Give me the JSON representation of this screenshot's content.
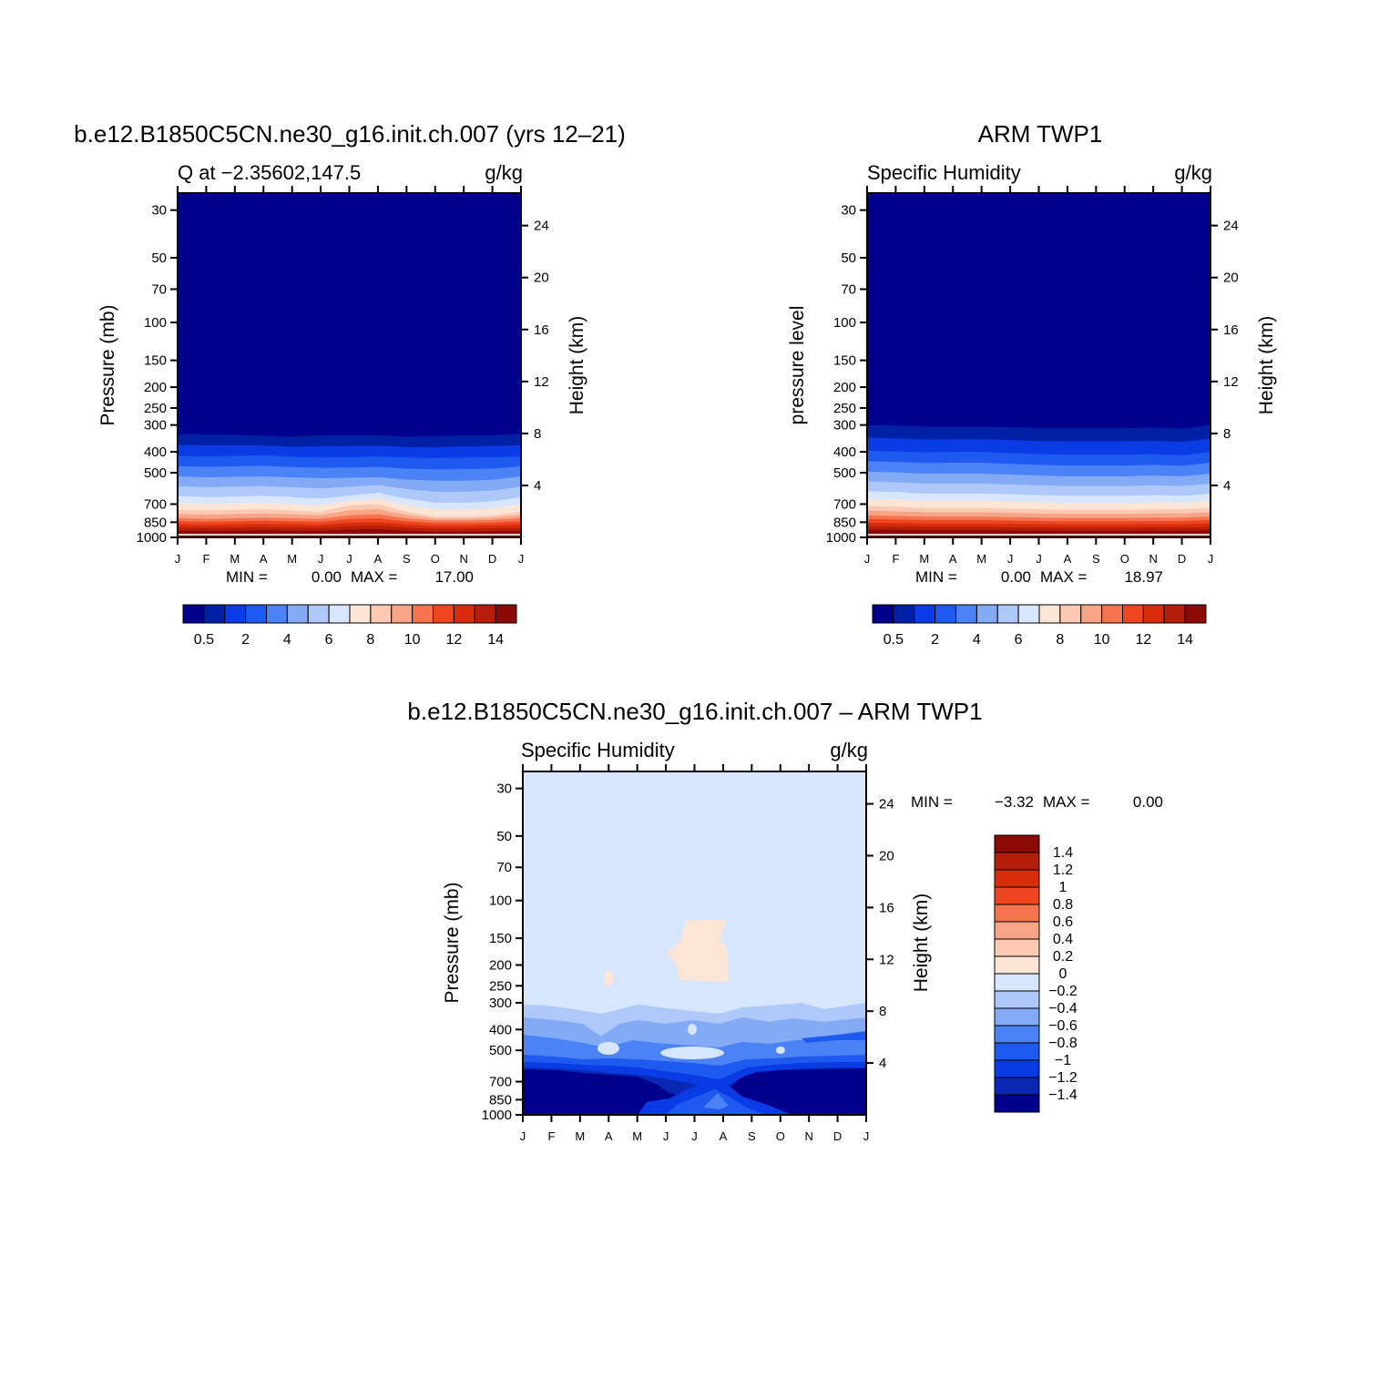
{
  "levels_colors": [
    "#00008c",
    "#0021a6",
    "#0a3ce6",
    "#1e5af0",
    "#4b82f5",
    "#82aaf5",
    "#afc8fa",
    "#d7e6fc",
    "#fde5d5",
    "#fbc8b1",
    "#f8a487",
    "#f67350",
    "#ee4620",
    "#d72d0a",
    "#b41e0a",
    "#8c0a05"
  ],
  "diff_levels_colors": [
    "#00008c",
    "#0a28b4",
    "#0a3ce6",
    "#1e5af0",
    "#4b82f5",
    "#82aaf5",
    "#afc8fa",
    "#d7e6fc",
    "#fde5d5",
    "#fbc8b1",
    "#f8a487",
    "#f67350",
    "#ee4620",
    "#d72d0a",
    "#b41e0a",
    "#8c0a05"
  ],
  "months": [
    "J",
    "F",
    "M",
    "A",
    "M",
    "J",
    "J",
    "A",
    "S",
    "O",
    "N",
    "D",
    "J"
  ],
  "pressure_ticks": [
    "30",
    "50",
    "70",
    "100",
    "150",
    "200",
    "250",
    "300",
    "400",
    "500",
    "700",
    "850",
    "1000"
  ],
  "height_ticks": [
    "24",
    "20",
    "16",
    "12",
    "8",
    "4"
  ],
  "panels": {
    "model": {
      "title": "b.e12.B1850C5CN.ne30_g16.init.ch.007 (yrs 12–21)",
      "left_label": "Q at −2.35602,147.5",
      "right_label": "g/kg",
      "ylabel": "Pressure (mb)",
      "ylabel_right": "Height (km)",
      "min_label": "MIN =",
      "min_value": "0.00",
      "max_label": "MAX =",
      "max_value": "17.00",
      "colorbar_labels": [
        "0.5",
        "2",
        "4",
        "6",
        "8",
        "10",
        "12",
        "14"
      ]
    },
    "obs": {
      "title": "ARM TWP1",
      "left_label": "Specific Humidity",
      "right_label": "g/kg",
      "ylabel": "pressure level",
      "ylabel_right": "Height (km)",
      "min_label": "MIN =",
      "min_value": "0.00",
      "max_label": "MAX =",
      "max_value": "18.97",
      "colorbar_labels": [
        "0.5",
        "2",
        "4",
        "6",
        "8",
        "10",
        "12",
        "14"
      ]
    },
    "diff": {
      "title": "b.e12.B1850C5CN.ne30_g16.init.ch.007 – ARM TWP1",
      "left_label": "Specific Humidity",
      "right_label": "g/kg",
      "ylabel": "Pressure (mb)",
      "ylabel_right": "Height (km)",
      "min_label": "MIN =",
      "min_value": "−3.32",
      "max_label": "MAX =",
      "max_value": "0.00",
      "colorbar_labels": [
        "1.4",
        "1.2",
        "1",
        "0.8",
        "0.6",
        "0.4",
        "0.2",
        "0",
        "−0.2",
        "−0.4",
        "−0.6",
        "−0.8",
        "−1",
        "−1.2",
        "−1.4"
      ]
    }
  },
  "chart_data": [
    {
      "type": "heatmap",
      "title": "b.e12.B1850C5CN.ne30_g16.init.ch.007 (yrs 12–21)",
      "variable": "Q at −2.35602,147.5",
      "units": "g/kg",
      "x": [
        "J",
        "F",
        "M",
        "A",
        "M",
        "J",
        "J",
        "A",
        "S",
        "O",
        "N",
        "D",
        "J"
      ],
      "ylabel": "Pressure (mb)",
      "ylim": [
        1000,
        25
      ],
      "y_scale": "log",
      "levels": [
        0.5,
        1,
        2,
        3,
        4,
        5,
        6,
        7,
        8,
        9,
        10,
        11,
        12,
        13,
        14
      ],
      "min": 0.0,
      "max": 17.0,
      "isobar_profiles": {
        "0.5": [
          330,
          332,
          333,
          337,
          340,
          334,
          334,
          334,
          340,
          338,
          335,
          335,
          330
        ],
        "2": [
          418,
          420,
          418,
          415,
          422,
          425,
          424,
          420,
          425,
          428,
          425,
          424,
          420
        ],
        "4": [
          520,
          525,
          522,
          520,
          525,
          530,
          528,
          525,
          538,
          545,
          545,
          540,
          520
        ],
        "6": [
          640,
          650,
          645,
          640,
          650,
          660,
          640,
          620,
          660,
          690,
          690,
          680,
          650
        ],
        "8": [
          745,
          750,
          745,
          740,
          750,
          760,
          710,
          700,
          760,
          800,
          800,
          790,
          760
        ],
        "10": [
          815,
          820,
          815,
          810,
          815,
          820,
          790,
          780,
          815,
          835,
          835,
          830,
          815
        ],
        "12": [
          870,
          875,
          870,
          865,
          870,
          875,
          855,
          850,
          870,
          885,
          885,
          880,
          870
        ],
        "14": [
          930,
          930,
          930,
          925,
          930,
          930,
          920,
          915,
          930,
          940,
          940,
          935,
          930
        ]
      }
    },
    {
      "type": "heatmap",
      "title": "ARM TWP1",
      "variable": "Specific Humidity",
      "units": "g/kg",
      "x": [
        "J",
        "F",
        "M",
        "A",
        "M",
        "J",
        "J",
        "A",
        "S",
        "O",
        "N",
        "D",
        "J"
      ],
      "ylabel": "pressure level",
      "ylim": [
        1000,
        25
      ],
      "y_scale": "log",
      "levels": [
        0.5,
        1,
        2,
        3,
        4,
        5,
        6,
        7,
        8,
        9,
        10,
        11,
        12,
        13,
        14
      ],
      "min": 0.0,
      "max": 18.97,
      "isobar_profiles": {
        "0.5": [
          300,
          302,
          305,
          305,
          305,
          307,
          310,
          310,
          310,
          310,
          308,
          312,
          300
        ],
        "2": [
          395,
          398,
          402,
          400,
          400,
          405,
          410,
          412,
          412,
          412,
          410,
          415,
          400
        ],
        "4": [
          495,
          498,
          505,
          505,
          505,
          510,
          515,
          520,
          520,
          520,
          515,
          520,
          505
        ],
        "6": [
          610,
          615,
          625,
          625,
          625,
          630,
          635,
          640,
          640,
          640,
          635,
          640,
          625
        ],
        "8": [
          715,
          720,
          730,
          730,
          730,
          735,
          740,
          745,
          745,
          745,
          740,
          740,
          730
        ],
        "10": [
          790,
          795,
          800,
          800,
          800,
          805,
          810,
          812,
          812,
          812,
          810,
          810,
          800
        ],
        "12": [
          855,
          858,
          862,
          862,
          862,
          865,
          868,
          870,
          870,
          870,
          868,
          868,
          862
        ],
        "14": [
          920,
          922,
          925,
          925,
          925,
          928,
          930,
          932,
          932,
          932,
          930,
          930,
          925
        ]
      }
    },
    {
      "type": "heatmap",
      "title": "b.e12.B1850C5CN.ne30_g16.init.ch.007 – ARM TWP1",
      "variable": "Specific Humidity",
      "units": "g/kg",
      "x": [
        "J",
        "F",
        "M",
        "A",
        "M",
        "J",
        "J",
        "A",
        "S",
        "O",
        "N",
        "D",
        "J"
      ],
      "ylabel": "Pressure (mb)",
      "ylim": [
        1000,
        25
      ],
      "y_scale": "log",
      "levels": [
        -1.4,
        -1.2,
        -1,
        -0.8,
        -0.6,
        -0.4,
        -0.2,
        0,
        0.2,
        0.4,
        0.6,
        0.8,
        1,
        1.2,
        1.4
      ],
      "min": -3.32,
      "max": 0.0
    }
  ]
}
